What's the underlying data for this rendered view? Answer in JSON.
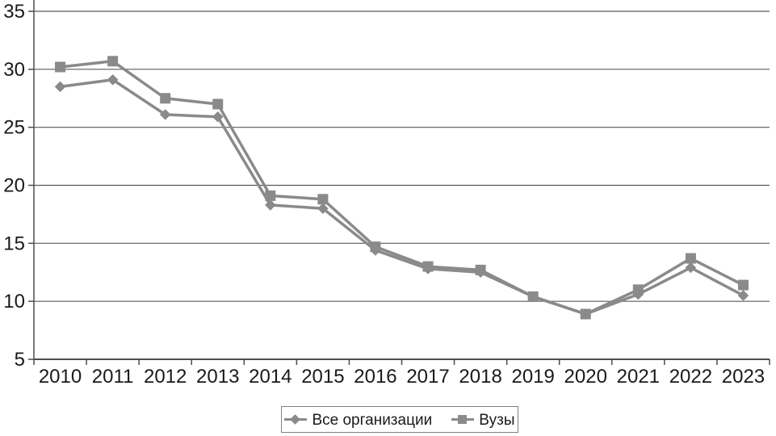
{
  "chart_data": {
    "type": "line",
    "categories": [
      "2010",
      "2011",
      "2012",
      "2013",
      "2014",
      "2015",
      "2016",
      "2017",
      "2018",
      "2019",
      "2020",
      "2021",
      "2022",
      "2023"
    ],
    "series": [
      {
        "name": "Все организации",
        "marker": "diamond",
        "values": [
          28.5,
          29.1,
          26.1,
          25.9,
          18.3,
          18.0,
          14.4,
          12.8,
          12.5,
          10.4,
          8.9,
          10.6,
          12.9,
          10.5
        ]
      },
      {
        "name": "Вузы",
        "marker": "square",
        "values": [
          30.2,
          30.7,
          27.5,
          27.0,
          19.1,
          18.8,
          14.7,
          13.0,
          12.7,
          10.4,
          8.9,
          11.0,
          13.7,
          11.4
        ]
      }
    ],
    "title": "",
    "xlabel": "",
    "ylabel": "",
    "ylim": [
      5,
      35
    ],
    "yticks": [
      5,
      10,
      15,
      20,
      25,
      30,
      35
    ],
    "grid": true,
    "legend_position": "bottom",
    "colors": {
      "series": "#8a8a8a",
      "grid": "#5a5a5a",
      "axis": "#4d4d4d",
      "text": "#1a1a1a",
      "legend_border": "#7f7f7f"
    }
  }
}
